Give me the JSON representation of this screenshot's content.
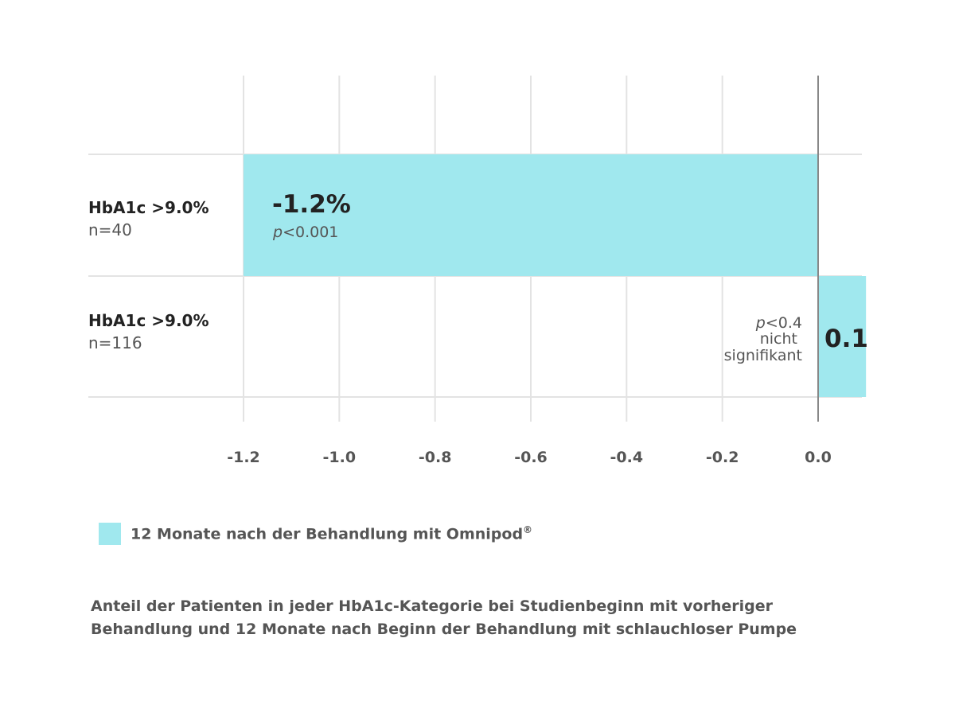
{
  "chart_data": {
    "type": "bar",
    "orientation": "horizontal",
    "categories": [
      {
        "name": "HbA1c >9.0%",
        "n": "n=40"
      },
      {
        "name": "HbA1c >9.0%",
        "n": "n=116"
      }
    ],
    "values": [
      -1.2,
      0.1
    ],
    "value_labels": [
      "-1.2%",
      "0.1"
    ],
    "annotations": [
      {
        "p_prefix": "p",
        "p_rest": "<0.001",
        "lines": []
      },
      {
        "p_prefix": "p",
        "p_rest": "<0.4",
        "lines": [
          "nicht",
          "signifikant"
        ]
      }
    ],
    "xlim": [
      -1.2,
      0.1
    ],
    "x_ticks": [
      -1.2,
      -1.0,
      -0.8,
      -0.6,
      -0.4,
      -0.2,
      0.0
    ],
    "x_tick_labels": [
      "-1.2",
      "-1.0",
      "-0.8",
      "-0.6",
      "-0.4",
      "-0.2",
      "0.0"
    ],
    "grid": true,
    "bar_color": "#a0e8ee",
    "zero_line_color": "#888888",
    "grid_color": "#e3e3e3",
    "series": [
      {
        "name": "12 Monate nach der Behandlung mit Omnipod",
        "name_sup": "®"
      }
    ]
  },
  "legend": {
    "label": "12 Monate nach der Behandlung mit Omnipod",
    "sup": "®"
  },
  "caption": {
    "line1": "Anteil der Patienten in jeder HbA1c-Kategorie bei Studienbeginn mit vorheriger",
    "line2": "Behandlung und 12 Monate nach Beginn der Behandlung mit schlauchloser Pumpe"
  }
}
